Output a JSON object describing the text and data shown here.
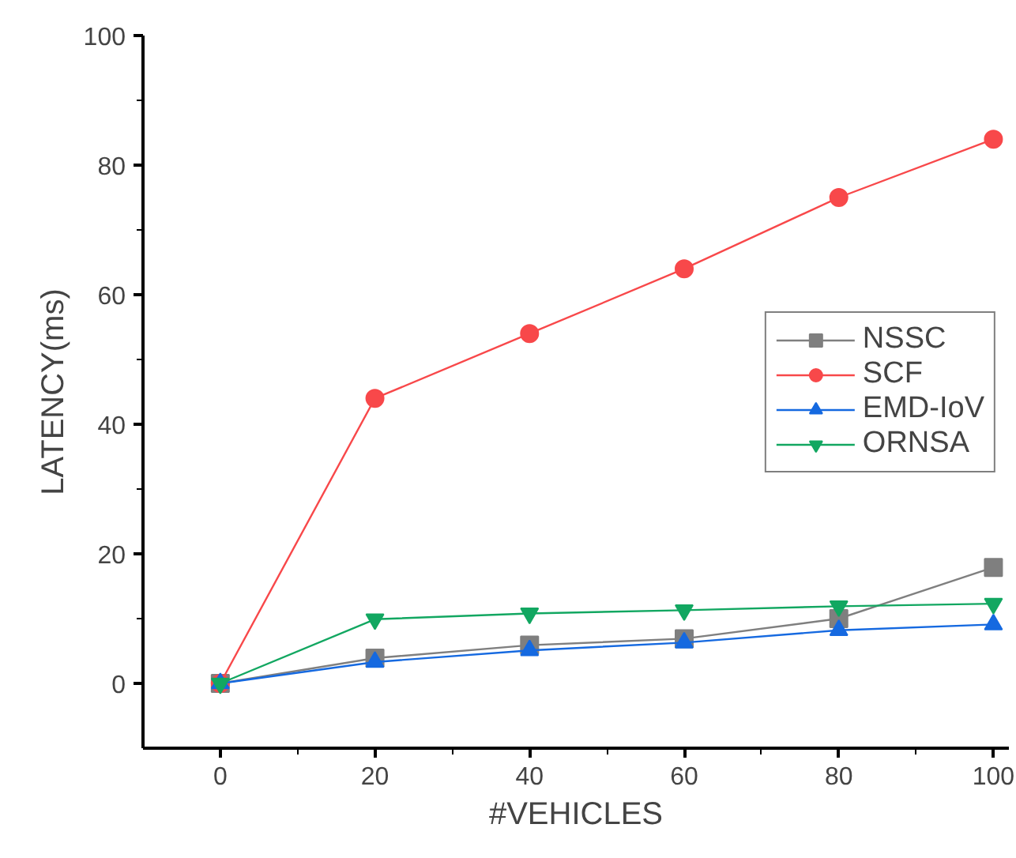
{
  "chart_data": {
    "type": "line",
    "xlabel": "#VEHICLES",
    "ylabel": "LATENCY(ms)",
    "x": [
      0,
      20,
      40,
      60,
      80,
      100
    ],
    "series": [
      {
        "name": "NSSC",
        "color": "#7f7f7f",
        "marker": "square",
        "values": [
          0,
          3.9,
          5.9,
          6.9,
          10,
          17.9
        ]
      },
      {
        "name": "SCF",
        "color": "#f8484a",
        "marker": "circle",
        "values": [
          0,
          44,
          54,
          64,
          75,
          84
        ]
      },
      {
        "name": "EMD-IoV",
        "color": "#1569e0",
        "marker": "triangle",
        "values": [
          0,
          3.3,
          5.1,
          6.3,
          8.2,
          9.1
        ]
      },
      {
        "name": "ORNSA",
        "color": "#12a761",
        "marker": "triangle",
        "values": [
          0,
          9.9,
          10.8,
          11.3,
          11.9,
          12.3
        ]
      }
    ],
    "xlim": [
      -10,
      102
    ],
    "ylim": [
      -10,
      100
    ],
    "xticks": [
      0,
      20,
      40,
      60,
      80,
      100
    ],
    "yticks": [
      0,
      20,
      40,
      60,
      80,
      100
    ],
    "grid": false,
    "legend": "right",
    "line_style": "solid"
  }
}
